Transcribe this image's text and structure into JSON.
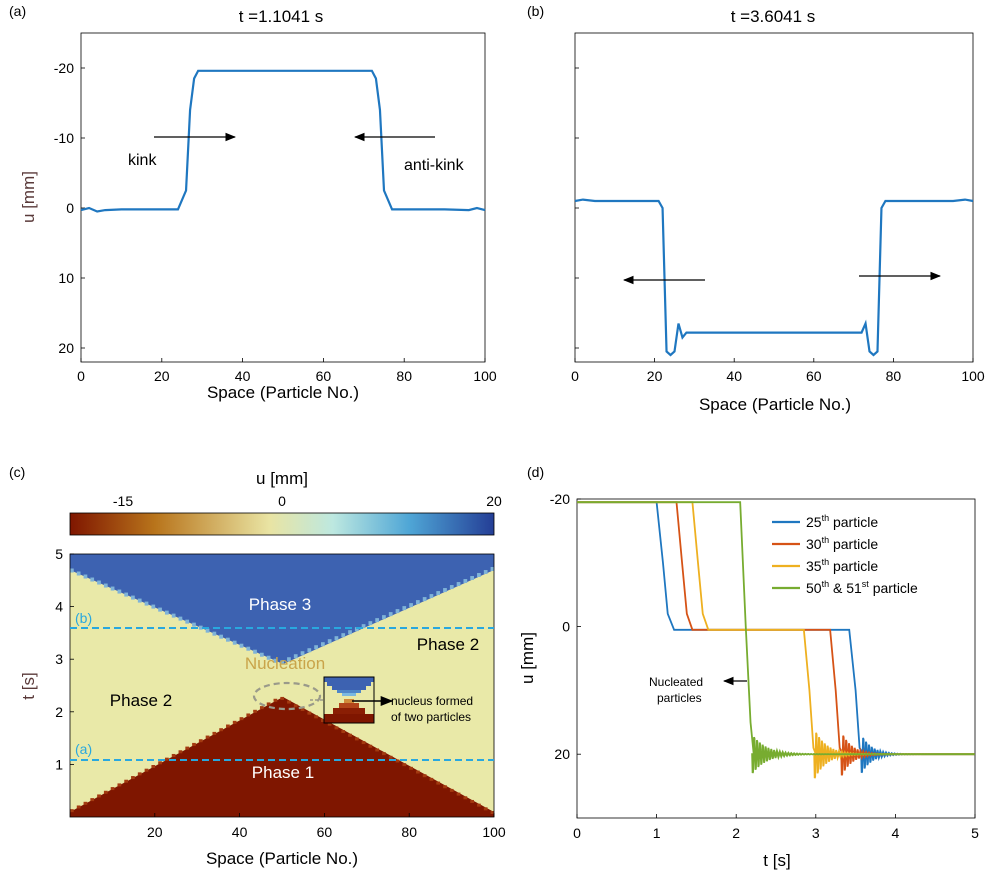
{
  "chart_data": [
    {
      "panel": "(a)",
      "type": "line",
      "title": "t =1.1041 s",
      "xlabel": "Space (Particle No.)",
      "ylabel": "u [mm]",
      "xlim": [
        0,
        100
      ],
      "ylim": [
        22,
        -25
      ],
      "y_reversed": true,
      "xticks": [
        0,
        20,
        40,
        60,
        80,
        100
      ],
      "yticks": [
        -20,
        -10,
        0,
        10,
        20
      ],
      "grid": false,
      "series": [
        {
          "color": "#1f77c0",
          "x": [
            0,
            2,
            4,
            6,
            10,
            15,
            20,
            24,
            26,
            27,
            28,
            29,
            40,
            50,
            60,
            70,
            72,
            73,
            74,
            75,
            77,
            80,
            90,
            96,
            98,
            100
          ],
          "y": [
            0.3,
            0,
            0.5,
            0.3,
            0.2,
            0.2,
            0.2,
            0.2,
            -2.5,
            -14,
            -18.5,
            -19.6,
            -19.6,
            -19.6,
            -19.6,
            -19.6,
            -19.6,
            -18.5,
            -14,
            -2.5,
            0.2,
            0.2,
            0.2,
            0.3,
            0,
            0.3
          ]
        }
      ],
      "annotations": [
        {
          "text": "kink",
          "x": 12,
          "y": -5,
          "arrow_from": [
            17,
            -10
          ],
          "arrow_to": [
            36,
            -10
          ]
        },
        {
          "text": "anti-kink",
          "x": 82,
          "y": -5,
          "arrow_from": [
            88,
            -10
          ],
          "arrow_to": [
            69,
            -10
          ]
        }
      ]
    },
    {
      "panel": "(b)",
      "type": "line",
      "title": "t =3.6041 s",
      "xlabel": "Space (Particle No.)",
      "xlim": [
        0,
        100
      ],
      "ylim": [
        22,
        -25
      ],
      "y_reversed": true,
      "xticks": [
        0,
        20,
        40,
        60,
        80,
        100
      ],
      "grid": false,
      "series": [
        {
          "color": "#1f77c0",
          "x": [
            0,
            2,
            5,
            10,
            15,
            20,
            21,
            22,
            23,
            24,
            25,
            26,
            27,
            28,
            30,
            40,
            50,
            60,
            70,
            72,
            73,
            74,
            75,
            76,
            77,
            78,
            79,
            80,
            85,
            90,
            95,
            98,
            100
          ],
          "y": [
            -1,
            -1.2,
            -1,
            -1,
            -1,
            -1,
            -1,
            0,
            20.5,
            21,
            20.5,
            16.5,
            18.5,
            17.8,
            17.8,
            17.8,
            17.8,
            17.8,
            17.8,
            17.8,
            16.5,
            20.5,
            21,
            20.5,
            0,
            -1,
            -1,
            -1,
            -1,
            -1,
            -1,
            -1.2,
            -1
          ]
        }
      ],
      "annotations": [
        {
          "text": "",
          "arrow_from": [
            32,
            11
          ],
          "arrow_to": [
            12,
            11
          ]
        },
        {
          "text": "",
          "arrow_from": [
            71,
            10.5
          ],
          "arrow_to": [
            93,
            10.5
          ]
        }
      ]
    },
    {
      "panel": "(c)",
      "type": "heatmap",
      "xlabel": "Space (Particle No.)",
      "ylabel": "t [s]",
      "xlim": [
        0,
        100
      ],
      "ylim": [
        0,
        5
      ],
      "xticks": [
        20,
        40,
        60,
        80,
        100
      ],
      "yticks": [
        1,
        2,
        3,
        4,
        5
      ],
      "colorbar": {
        "label": "u [mm]",
        "range": [
          -20,
          20
        ],
        "ticks": [
          -15,
          0,
          20
        ],
        "stops": [
          "#7f1600",
          "#b8741b",
          "#e9e4a3",
          "#bde8e0",
          "#4fa6d6",
          "#243e96"
        ]
      },
      "regions": [
        {
          "label": "Phase 1",
          "color": "#7f1600"
        },
        {
          "label": "Phase 2",
          "color": "#e9e9a8"
        },
        {
          "label": "Phase 3",
          "color": "#3d62b1"
        }
      ],
      "labels": {
        "phase3": "Phase 3",
        "phase2_left": "Phase 2",
        "phase2_right": "Phase 2",
        "phase1": "Phase 1",
        "nucleation": "Nucleation",
        "nucleus_line1": "nucleus formed",
        "nucleus_line2": "of two particles",
        "cut_b": "(b)",
        "cut_a": "(a)"
      },
      "cut_lines": [
        3.6041,
        1.1041
      ],
      "phase_boundaries": {
        "phase1_apex": [
          50,
          2.15
        ],
        "phase3_apex": [
          50,
          2.05
        ],
        "phase3_left_edge_at_top": [
          0,
          4.7
        ],
        "phase1_left_edge_at_bottom": [
          0,
          0.1
        ]
      }
    },
    {
      "panel": "(d)",
      "type": "line",
      "xlabel": "t [s]",
      "ylabel": "u [mm]",
      "xlim": [
        0,
        5
      ],
      "ylim": [
        30,
        -20
      ],
      "y_reversed": true,
      "xticks": [
        0,
        1,
        2,
        3,
        4,
        5
      ],
      "yticks": [
        -20,
        0,
        20
      ],
      "grid": false,
      "series": [
        {
          "name": "25th particle",
          "name_base": "25",
          "name_sup": "th",
          "name_rest": " particle",
          "color": "#1f77c0",
          "segments": [
            {
              "x": [
                0,
                1.0,
                1.08,
                1.14,
                1.22,
                3.42,
                3.5,
                3.55,
                3.6
              ],
              "y": [
                -19.5,
                -19.5,
                -10,
                -2,
                0.5,
                0.5,
                10,
                19,
                20
              ]
            }
          ],
          "ring": {
            "t0": 3.57,
            "t1": 5.0,
            "amp": 3.5,
            "decay": 8
          }
        },
        {
          "name": "30th particle",
          "name_base": "30",
          "name_sup": "th",
          "name_rest": " particle",
          "color": "#d65316",
          "segments": [
            {
              "x": [
                0,
                1.25,
                1.32,
                1.38,
                1.45,
                3.18,
                3.25,
                3.3,
                3.34
              ],
              "y": [
                -19.5,
                -19.5,
                -10,
                -2,
                0.5,
                0.5,
                10,
                19,
                20
              ]
            }
          ],
          "ring": {
            "t0": 3.32,
            "t1": 5.0,
            "amp": 4,
            "decay": 8
          }
        },
        {
          "name": "35th particle",
          "name_base": "35",
          "name_sup": "th",
          "name_rest": " particle",
          "color": "#eeb020",
          "segments": [
            {
              "x": [
                0,
                1.45,
                1.52,
                1.58,
                1.65,
                2.85,
                2.92,
                2.97,
                3.0
              ],
              "y": [
                -19.5,
                -19.5,
                -10,
                -2,
                0.5,
                0.5,
                10,
                19,
                20
              ]
            }
          ],
          "ring": {
            "t0": 2.98,
            "t1": 5.0,
            "amp": 4.5,
            "decay": 7
          }
        },
        {
          "name": "50th & 51st particle",
          "name_base": "50",
          "name_sup": "th",
          "name_mid": " & 51",
          "name_sup2": "st",
          "name_rest": " particle",
          "color": "#77ac30",
          "segments": [
            {
              "x": [
                0,
                2.05,
                2.12,
                2.18,
                2.22
              ],
              "y": [
                -19.5,
                -19.5,
                0,
                15,
                20
              ]
            }
          ],
          "ring": {
            "t0": 2.2,
            "t1": 5.0,
            "amp": 3.5,
            "decay": 6
          }
        }
      ],
      "legend_position": "top-right",
      "annotation": {
        "line1": "Nucleated",
        "line2": "particles",
        "arrow_from": [
          2.12,
          7.5
        ],
        "arrow_to": [
          1.7,
          7.5
        ]
      }
    }
  ],
  "panel_labels": [
    "(a)",
    "(b)",
    "(c)",
    "(d)"
  ],
  "tick_labels": {
    "a_y": [
      "-20",
      "-10",
      "0",
      "10",
      "20"
    ],
    "x_full": [
      "0",
      "20",
      "40",
      "60",
      "80",
      "100"
    ],
    "c_x": [
      "20",
      "40",
      "60",
      "80",
      "100"
    ],
    "c_y": [
      "1",
      "2",
      "3",
      "4",
      "5"
    ],
    "c_cbar": [
      "-15",
      "0",
      "20"
    ],
    "d_y": [
      "-20",
      "0",
      "20"
    ],
    "d_x": [
      "0",
      "1",
      "2",
      "3",
      "4",
      "5"
    ]
  }
}
